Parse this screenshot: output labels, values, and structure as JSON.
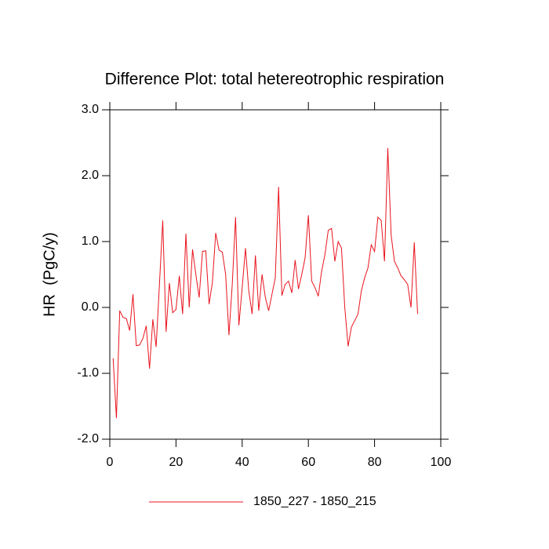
{
  "chart_data": {
    "type": "line",
    "title": "Difference Plot: total hetereotrophic respiration",
    "y_label": "HR  (PgC/y)",
    "x": [
      1,
      2,
      3,
      4,
      5,
      6,
      7,
      8,
      9,
      10,
      11,
      12,
      13,
      14,
      15,
      16,
      17,
      18,
      19,
      20,
      21,
      22,
      23,
      24,
      25,
      26,
      27,
      28,
      29,
      30,
      31,
      32,
      33,
      34,
      35,
      36,
      37,
      38,
      39,
      40,
      41,
      42,
      43,
      44,
      45,
      46,
      47,
      48,
      49,
      50,
      51,
      52,
      53,
      54,
      55,
      56,
      57,
      58,
      59,
      60,
      61,
      62,
      63,
      64,
      65,
      66,
      67,
      68,
      69,
      70,
      71,
      72,
      73,
      74,
      75,
      76,
      77,
      78,
      79,
      80,
      81,
      82,
      83,
      84,
      85,
      86,
      87,
      88,
      89,
      90,
      91,
      92,
      93
    ],
    "series": [
      {
        "name": "1850_227 - 1850_215",
        "color": "#e8141e",
        "values": [
          -0.77,
          -1.68,
          -0.05,
          -0.15,
          -0.17,
          -0.35,
          0.2,
          -0.58,
          -0.57,
          -0.47,
          -0.28,
          -0.93,
          -0.18,
          -0.6,
          0.35,
          1.32,
          -0.37,
          0.37,
          -0.08,
          -0.03,
          0.48,
          -0.1,
          1.12,
          0.0,
          0.88,
          0.5,
          0.15,
          0.85,
          0.86,
          0.05,
          0.38,
          1.13,
          0.87,
          0.84,
          0.5,
          -0.42,
          0.35,
          1.37,
          -0.27,
          0.3,
          0.9,
          0.25,
          -0.1,
          0.79,
          -0.05,
          0.5,
          0.15,
          -0.05,
          0.2,
          0.45,
          1.83,
          0.18,
          0.35,
          0.4,
          0.22,
          0.72,
          0.28,
          0.5,
          0.75,
          1.4,
          0.4,
          0.3,
          0.17,
          0.55,
          0.8,
          1.17,
          1.2,
          0.7,
          1.0,
          0.9,
          0.0,
          -0.59,
          -0.3,
          -0.2,
          -0.1,
          0.25,
          0.45,
          0.6,
          0.95,
          0.85,
          1.37,
          1.32,
          0.7,
          2.42,
          1.1,
          0.7,
          0.6,
          0.48,
          0.42,
          0.35,
          0.0,
          0.99,
          -0.1
        ]
      }
    ],
    "xlim": [
      0,
      100
    ],
    "xticks": [
      0,
      20,
      40,
      60,
      80,
      100
    ],
    "ylim": [
      -2,
      3
    ],
    "yticks": [
      {
        "value": -2,
        "label": "-2.0"
      },
      {
        "value": -1,
        "label": "-1.0"
      },
      {
        "value": 0,
        "label": "0.0"
      },
      {
        "value": 1,
        "label": "1.0"
      },
      {
        "value": 2,
        "label": "2.0"
      },
      {
        "value": 3,
        "label": "3.0"
      }
    ],
    "legend": "bottom"
  }
}
